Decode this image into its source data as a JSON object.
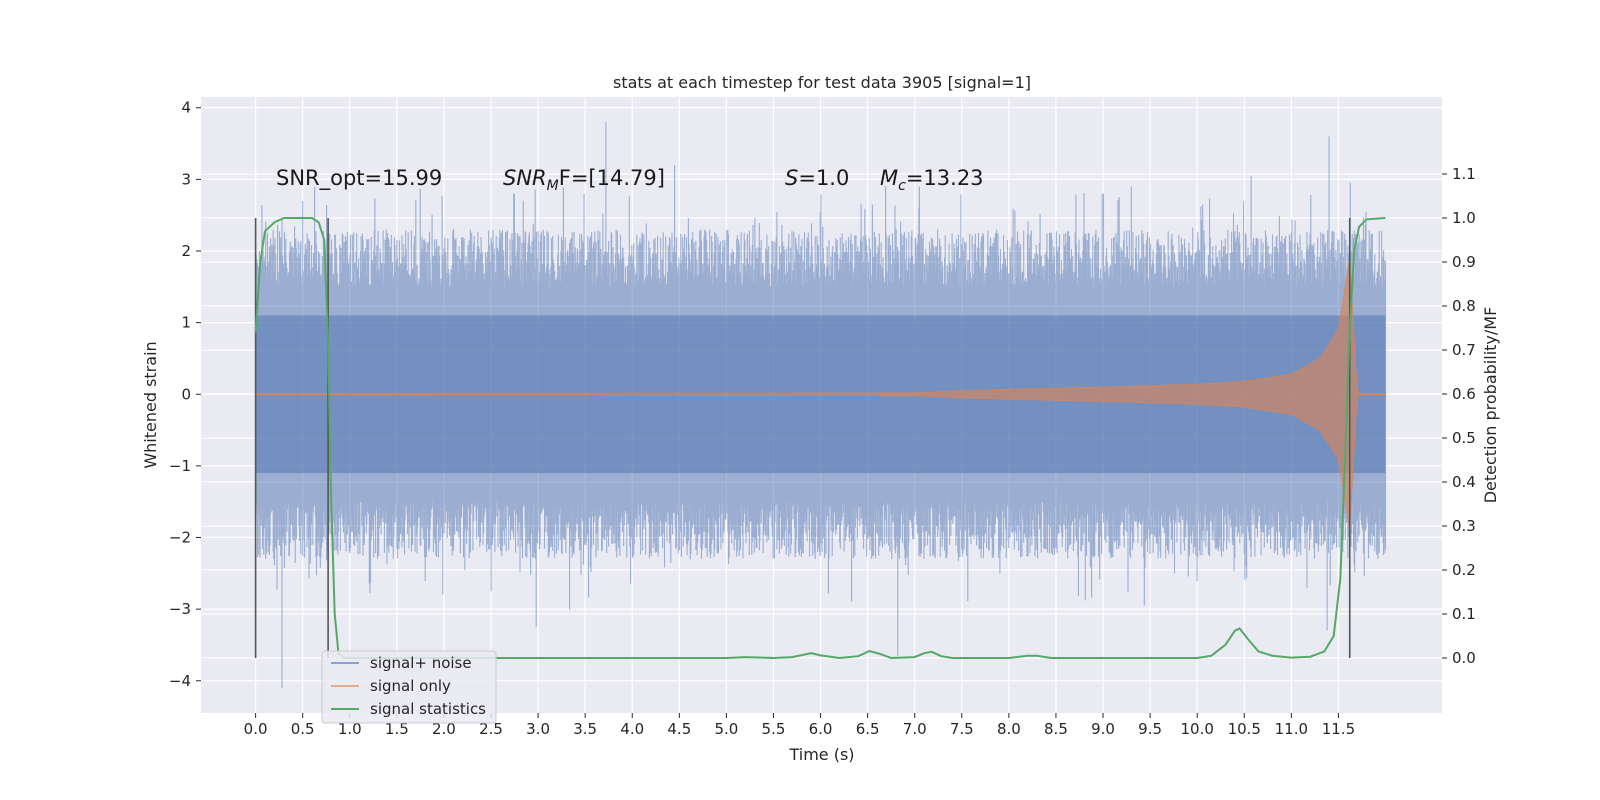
{
  "chart_data": {
    "type": "line",
    "title": "stats at each timestep for test data 3905 [signal=1]",
    "xlabel": "Time (s)",
    "ylabel_left": "Whitened strain",
    "ylabel_right": "Detection probability/MF",
    "xlim": [
      -0.58,
      12.6
    ],
    "ylim_left": [
      -4.45,
      4.15
    ],
    "ylim_right": [
      -0.125,
      1.275
    ],
    "x_ticks": [
      "0.0",
      "0.5",
      "1.0",
      "1.5",
      "2.0",
      "2.5",
      "3.0",
      "3.5",
      "4.0",
      "4.5",
      "5.0",
      "5.5",
      "6.0",
      "6.5",
      "7.0",
      "7.5",
      "8.0",
      "8.5",
      "9.0",
      "9.5",
      "10.0",
      "10.5",
      "11.0",
      "11.5"
    ],
    "y_ticks_left": [
      "4",
      "3",
      "2",
      "1",
      "0",
      "−1",
      "−2",
      "−3",
      "−4"
    ],
    "y_ticks_right": [
      "1.1",
      "1.0",
      "0.9",
      "0.8",
      "0.7",
      "0.6",
      "0.5",
      "0.4",
      "0.3",
      "0.2",
      "0.1",
      "0.0"
    ],
    "grid": true,
    "legend_position": "bottom-left",
    "annotations": {
      "snr_opt": "SNR_opt=15.99",
      "snr_mf_sym": "SNR",
      "snr_mf_sub": "M",
      "snr_mf_rest": "F=[14.79]",
      "s_sym": "S",
      "s_rest": "=1.0",
      "mc_sym": "M",
      "mc_sub": "c",
      "mc_rest": "=13.23"
    },
    "vertical_markers": [
      0.0,
      0.77,
      11.62
    ],
    "series": [
      {
        "name": "signal+ noise",
        "axis": "left",
        "color": "#4c72b0",
        "t_range": [
          0.0,
          12.0
        ],
        "envelope": {
          "core_pm": 1.1,
          "typical_peak": [
            1.5,
            2.3
          ],
          "min": -4.1,
          "max": 3.8
        },
        "spikes": [
          [
            3.72,
            3.8
          ],
          [
            11.4,
            3.6
          ],
          [
            0.28,
            -4.1
          ],
          [
            6.82,
            -3.65
          ],
          [
            11.38,
            -3.3
          ],
          [
            2.98,
            -3.25
          ],
          [
            0.5,
            2.7
          ],
          [
            4.45,
            3.2
          ],
          [
            7.05,
            2.9
          ],
          [
            9.3,
            2.9
          ]
        ]
      },
      {
        "name": "signal only",
        "axis": "left",
        "color": "#dd8452",
        "t_range": [
          0.0,
          12.0
        ],
        "amplitude_points": [
          [
            0.0,
            0.01
          ],
          [
            7.0,
            0.02
          ],
          [
            7.5,
            0.05
          ],
          [
            8.0,
            0.07
          ],
          [
            9.0,
            0.1
          ],
          [
            10.0,
            0.14
          ],
          [
            10.5,
            0.18
          ],
          [
            11.0,
            0.28
          ],
          [
            11.3,
            0.5
          ],
          [
            11.5,
            0.9
          ],
          [
            11.62,
            1.9
          ],
          [
            11.7,
            0.01
          ],
          [
            12.0,
            0.01
          ]
        ]
      },
      {
        "name": "signal statistics",
        "axis": "right",
        "color": "#55a868",
        "points": [
          [
            0.0,
            0.74
          ],
          [
            0.05,
            0.9
          ],
          [
            0.1,
            0.97
          ],
          [
            0.2,
            0.99
          ],
          [
            0.3,
            1.0
          ],
          [
            0.6,
            1.0
          ],
          [
            0.67,
            0.99
          ],
          [
            0.73,
            0.95
          ],
          [
            0.77,
            0.72
          ],
          [
            0.8,
            0.38
          ],
          [
            0.84,
            0.1
          ],
          [
            0.88,
            0.01
          ],
          [
            0.95,
            0.0
          ],
          [
            5.0,
            0.0
          ],
          [
            5.2,
            0.002
          ],
          [
            5.5,
            0.0
          ],
          [
            5.7,
            0.002
          ],
          [
            5.9,
            0.011
          ],
          [
            6.0,
            0.006
          ],
          [
            6.2,
            0.0
          ],
          [
            6.4,
            0.004
          ],
          [
            6.52,
            0.016
          ],
          [
            6.62,
            0.01
          ],
          [
            6.75,
            0.0
          ],
          [
            7.0,
            0.002
          ],
          [
            7.1,
            0.011
          ],
          [
            7.18,
            0.014
          ],
          [
            7.28,
            0.004
          ],
          [
            7.4,
            0.0
          ],
          [
            8.0,
            0.0
          ],
          [
            8.2,
            0.005
          ],
          [
            8.3,
            0.005
          ],
          [
            8.45,
            0.0
          ],
          [
            10.0,
            0.0
          ],
          [
            10.15,
            0.005
          ],
          [
            10.3,
            0.03
          ],
          [
            10.4,
            0.062
          ],
          [
            10.45,
            0.067
          ],
          [
            10.55,
            0.04
          ],
          [
            10.65,
            0.015
          ],
          [
            10.8,
            0.005
          ],
          [
            11.0,
            0.001
          ],
          [
            11.2,
            0.003
          ],
          [
            11.35,
            0.015
          ],
          [
            11.45,
            0.05
          ],
          [
            11.52,
            0.18
          ],
          [
            11.57,
            0.45
          ],
          [
            11.62,
            0.75
          ],
          [
            11.67,
            0.93
          ],
          [
            11.72,
            0.98
          ],
          [
            11.8,
            0.997
          ],
          [
            12.0,
            1.0
          ]
        ]
      }
    ]
  }
}
